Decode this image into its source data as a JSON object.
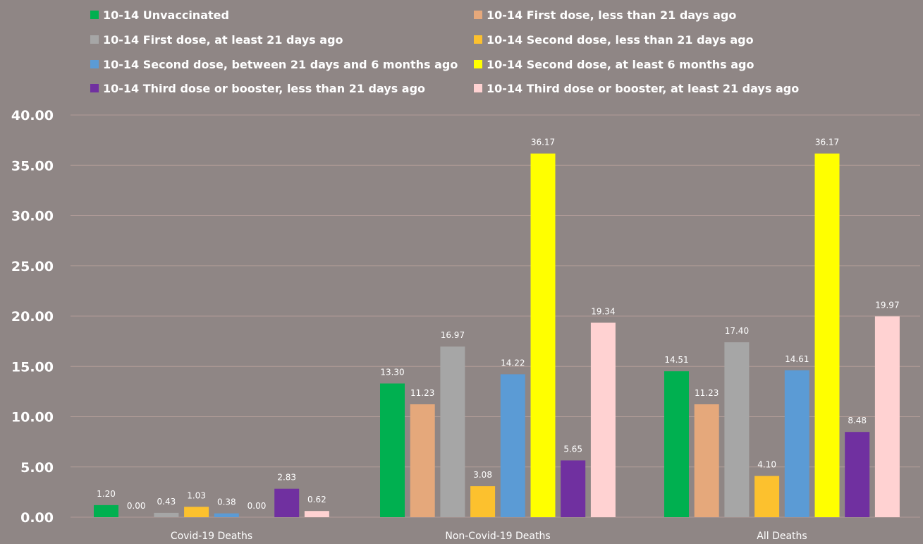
{
  "chart_data": {
    "type": "bar",
    "categories": [
      "Covid-19 Deaths",
      "Non-Covid-19 Deaths",
      "All Deaths"
    ],
    "ylim": [
      0,
      40
    ],
    "yticks": [
      "0.00",
      "5.00",
      "10.00",
      "15.00",
      "20.00",
      "25.00",
      "30.00",
      "35.00",
      "40.00"
    ],
    "grid": true,
    "legend_position": "top",
    "series": [
      {
        "name": "10-14 Unvaccinated",
        "color": "#00b050",
        "values": [
          1.2,
          13.3,
          14.51
        ],
        "labels": [
          "1.20",
          "13.30",
          "14.51"
        ]
      },
      {
        "name": "10-14 First dose, less than 21 days ago",
        "color": "#e5a87b",
        "values": [
          0.0,
          11.23,
          11.23
        ],
        "labels": [
          "0.00",
          "11.23",
          "11.23"
        ]
      },
      {
        "name": "10-14 First dose, at least 21 days ago",
        "color": "#a6a6a6",
        "values": [
          0.43,
          16.97,
          17.4
        ],
        "labels": [
          "0.43",
          "16.97",
          "17.40"
        ]
      },
      {
        "name": "10-14 Second dose, less than 21 days ago",
        "color": "#fcc12e",
        "values": [
          1.03,
          3.08,
          4.1
        ],
        "labels": [
          "1.03",
          "3.08",
          "4.10"
        ]
      },
      {
        "name": "10-14 Second dose, between 21 days and 6 months ago",
        "color": "#5b9bd5",
        "values": [
          0.38,
          14.22,
          14.61
        ],
        "labels": [
          "0.38",
          "14.22",
          "14.61"
        ]
      },
      {
        "name": "10-14 Second dose, at least 6 months ago",
        "color": "#ffff00",
        "values": [
          0.0,
          36.17,
          36.17
        ],
        "labels": [
          "0.00",
          "36.17",
          "36.17"
        ]
      },
      {
        "name": "10-14 Third dose or booster, less than 21 days ago",
        "color": "#7030a0",
        "values": [
          2.83,
          5.65,
          8.48
        ],
        "labels": [
          "2.83",
          "5.65",
          "8.48"
        ]
      },
      {
        "name": "10-14 Third dose or booster, at least 21 days ago",
        "color": "#ffd2d2",
        "values": [
          0.62,
          19.34,
          19.97
        ],
        "labels": [
          "0.62",
          "19.34",
          "19.97"
        ]
      }
    ]
  }
}
